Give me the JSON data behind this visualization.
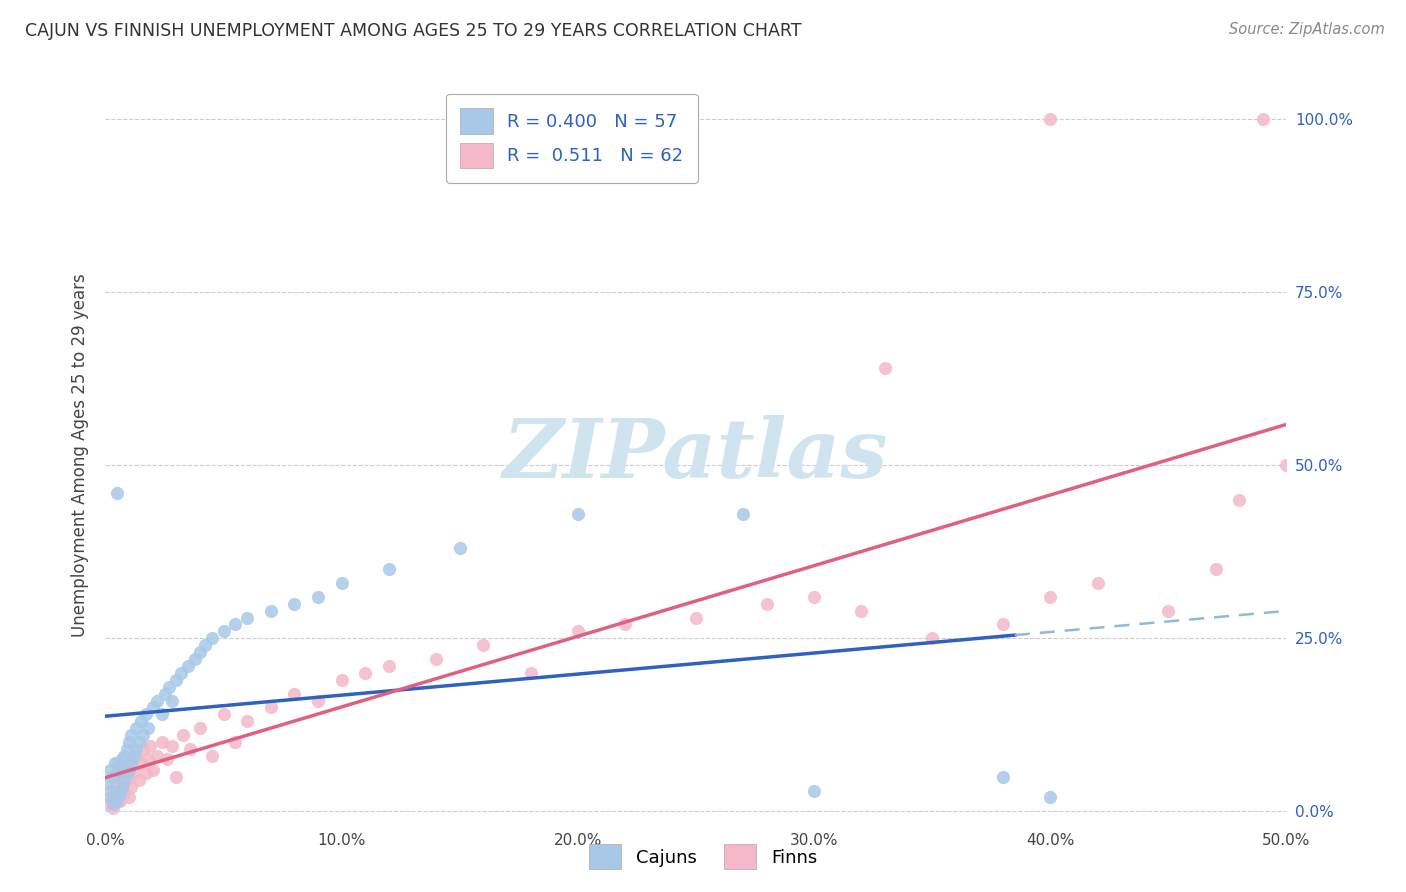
{
  "title": "CAJUN VS FINNISH UNEMPLOYMENT AMONG AGES 25 TO 29 YEARS CORRELATION CHART",
  "source": "Source: ZipAtlas.com",
  "ylabel": "Unemployment Among Ages 25 to 29 years",
  "xlim": [
    0.0,
    0.5
  ],
  "ylim": [
    -0.02,
    1.05
  ],
  "xtick_vals": [
    0.0,
    0.1,
    0.2,
    0.3,
    0.4,
    0.5
  ],
  "xticklabels": [
    "0.0%",
    "10.0%",
    "20.0%",
    "30.0%",
    "40.0%",
    "50.0%"
  ],
  "ytick_vals": [
    0.0,
    0.25,
    0.5,
    0.75,
    1.0
  ],
  "yticklabels_right": [
    "0.0%",
    "25.0%",
    "50.0%",
    "75.0%",
    "100.0%"
  ],
  "cajun_dot_color": "#a8c8e8",
  "finn_dot_color": "#f4b8c8",
  "cajun_line_color": "#3060c0",
  "cajun_dash_color": "#90b8d8",
  "finn_line_color": "#e06080",
  "right_axis_color": "#3060c0",
  "legend_text_color": "#3060c0",
  "watermark_color": "#d0e4f0",
  "background_color": "#ffffff",
  "grid_color": "#cccccc",
  "title_color": "#333333",
  "source_color": "#888888",
  "cajun_x": [
    0.001,
    0.002,
    0.002,
    0.003,
    0.003,
    0.004,
    0.004,
    0.005,
    0.005,
    0.006,
    0.006,
    0.007,
    0.007,
    0.008,
    0.008,
    0.009,
    0.009,
    0.01,
    0.01,
    0.011,
    0.011,
    0.012,
    0.013,
    0.013,
    0.014,
    0.015,
    0.016,
    0.017,
    0.018,
    0.02,
    0.022,
    0.024,
    0.025,
    0.027,
    0.028,
    0.03,
    0.032,
    0.035,
    0.038,
    0.04,
    0.042,
    0.045,
    0.05,
    0.055,
    0.06,
    0.07,
    0.08,
    0.09,
    0.1,
    0.12,
    0.005,
    0.15,
    0.2,
    0.27,
    0.3,
    0.38,
    0.4
  ],
  "cajun_y": [
    0.04,
    0.02,
    0.06,
    0.01,
    0.05,
    0.03,
    0.07,
    0.015,
    0.055,
    0.025,
    0.065,
    0.035,
    0.075,
    0.045,
    0.08,
    0.055,
    0.09,
    0.06,
    0.1,
    0.07,
    0.11,
    0.08,
    0.09,
    0.12,
    0.1,
    0.13,
    0.11,
    0.14,
    0.12,
    0.15,
    0.16,
    0.14,
    0.17,
    0.18,
    0.16,
    0.19,
    0.2,
    0.21,
    0.22,
    0.23,
    0.24,
    0.25,
    0.26,
    0.27,
    0.28,
    0.29,
    0.3,
    0.31,
    0.33,
    0.35,
    0.46,
    0.38,
    0.43,
    0.43,
    0.03,
    0.05,
    0.02
  ],
  "finn_x": [
    0.001,
    0.002,
    0.003,
    0.003,
    0.004,
    0.005,
    0.005,
    0.006,
    0.007,
    0.007,
    0.008,
    0.009,
    0.01,
    0.01,
    0.011,
    0.012,
    0.013,
    0.014,
    0.015,
    0.016,
    0.017,
    0.018,
    0.019,
    0.02,
    0.022,
    0.024,
    0.026,
    0.028,
    0.03,
    0.033,
    0.036,
    0.04,
    0.045,
    0.05,
    0.055,
    0.06,
    0.07,
    0.08,
    0.09,
    0.1,
    0.11,
    0.12,
    0.14,
    0.16,
    0.18,
    0.2,
    0.22,
    0.25,
    0.28,
    0.3,
    0.32,
    0.35,
    0.38,
    0.4,
    0.42,
    0.45,
    0.47,
    0.48,
    0.5,
    0.49,
    0.33,
    0.4
  ],
  "finn_y": [
    0.01,
    0.03,
    0.005,
    0.05,
    0.02,
    0.04,
    0.07,
    0.015,
    0.035,
    0.06,
    0.025,
    0.045,
    0.02,
    0.065,
    0.035,
    0.055,
    0.08,
    0.045,
    0.07,
    0.09,
    0.055,
    0.075,
    0.095,
    0.06,
    0.08,
    0.1,
    0.075,
    0.095,
    0.05,
    0.11,
    0.09,
    0.12,
    0.08,
    0.14,
    0.1,
    0.13,
    0.15,
    0.17,
    0.16,
    0.19,
    0.2,
    0.21,
    0.22,
    0.24,
    0.2,
    0.26,
    0.27,
    0.28,
    0.3,
    0.31,
    0.29,
    0.25,
    0.27,
    0.31,
    0.33,
    0.29,
    0.35,
    0.45,
    0.5,
    1.0,
    0.64,
    1.0
  ]
}
